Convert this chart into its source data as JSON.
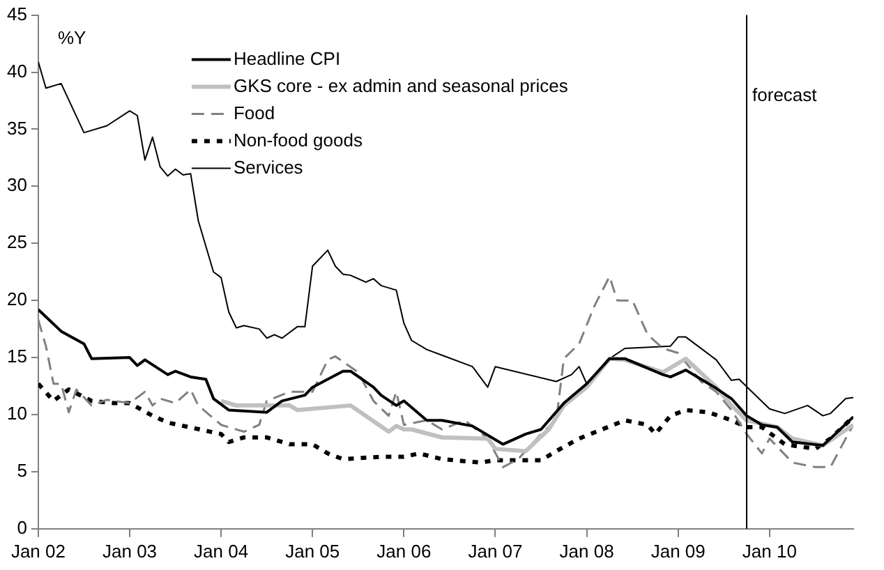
{
  "chart_data": {
    "type": "line",
    "ylabel": "%Y",
    "xlim": [
      "2002-01",
      "2010-12"
    ],
    "xticks": [
      {
        "value": "2002-01",
        "label": "Jan 02"
      },
      {
        "value": "2003-01",
        "label": "Jan 03"
      },
      {
        "value": "2004-01",
        "label": "Jan 04"
      },
      {
        "value": "2005-01",
        "label": "Jan 05"
      },
      {
        "value": "2006-01",
        "label": "Jan 06"
      },
      {
        "value": "2007-01",
        "label": "Jan 07"
      },
      {
        "value": "2008-01",
        "label": "Jan 08"
      },
      {
        "value": "2009-01",
        "label": "Jan 09"
      },
      {
        "value": "2010-01",
        "label": "Jan 10"
      }
    ],
    "ylim": [
      0,
      45
    ],
    "yticks": [
      0,
      5,
      10,
      15,
      20,
      25,
      30,
      35,
      40,
      45
    ],
    "grid": false,
    "legend": "top",
    "marker": "none",
    "ref_lines": [
      {
        "axis": "x",
        "value": "2009-10",
        "label": "forecast",
        "color": "#000000"
      }
    ],
    "series": [
      {
        "name": "Headline CPI",
        "color": "#000000",
        "line_style": "solid",
        "x": [
          "2002-01",
          "2002-04",
          "2002-07",
          "2002-08",
          "2003-01",
          "2003-02",
          "2003-03",
          "2003-06",
          "2003-07",
          "2003-09",
          "2003-11",
          "2003-12",
          "2004-02",
          "2004-07",
          "2004-09",
          "2004-12",
          "2005-01",
          "2005-05",
          "2005-06",
          "2005-09",
          "2005-10",
          "2005-12",
          "2006-01",
          "2006-04",
          "2006-06",
          "2006-10",
          "2007-02",
          "2007-05",
          "2007-07",
          "2007-10",
          "2008-01",
          "2008-04",
          "2008-06",
          "2008-11",
          "2008-12",
          "2009-02",
          "2009-06",
          "2009-08",
          "2009-10",
          "2009-12",
          "2010-02",
          "2010-04",
          "2010-08",
          "2010-09",
          "2010-12"
        ],
        "values": [
          19.2,
          17.3,
          16.2,
          14.9,
          15,
          14.3,
          14.8,
          13.5,
          13.8,
          13.3,
          13.1,
          11.4,
          10.4,
          10.2,
          11.2,
          11.7,
          12.4,
          13.8,
          13.8,
          12.4,
          11.7,
          10.8,
          11.2,
          9.5,
          9.5,
          9.0,
          7.4,
          8.3,
          8.7,
          11,
          12.7,
          14.9,
          14.9,
          13.5,
          13.3,
          13.9,
          12.3,
          11.4,
          9.9,
          9.1,
          8.9,
          7.6,
          7.3,
          7.9,
          9.8
        ]
      },
      {
        "name": "GKS core - ex admin and seasonal prices",
        "color": "#c0c0c0",
        "line_style": "solid",
        "x": [
          "2004-01",
          "2004-03",
          "2004-10",
          "2004-11",
          "2005-06",
          "2005-11",
          "2005-12",
          "2006-01",
          "2006-02",
          "2006-06",
          "2006-12",
          "2007-01",
          "2007-05",
          "2007-08",
          "2007-10",
          "2008-01",
          "2008-04",
          "2008-06",
          "2008-11",
          "2009-02",
          "2009-06",
          "2009-08",
          "2009-10",
          "2010-02",
          "2010-04",
          "2010-08",
          "2010-12"
        ],
        "values": [
          11.2,
          10.8,
          10.8,
          10.4,
          10.8,
          8.5,
          9,
          8.7,
          8.7,
          8.0,
          7.9,
          7.0,
          6.8,
          8.7,
          10.8,
          12.4,
          14.9,
          14.8,
          13.7,
          14.9,
          12.4,
          10.8,
          9.5,
          8.9,
          7.9,
          7.3,
          9.1
        ]
      },
      {
        "name": "Food",
        "color": "#808080",
        "line_style": "dashed",
        "x": [
          "2002-01",
          "2002-02",
          "2002-03",
          "2002-04",
          "2002-05",
          "2002-06",
          "2002-08",
          "2002-10",
          "2003-01",
          "2003-03",
          "2003-04",
          "2003-05",
          "2003-07",
          "2003-09",
          "2003-10",
          "2004-01",
          "2004-04",
          "2004-06",
          "2004-07",
          "2004-10",
          "2005-01",
          "2005-03",
          "2005-04",
          "2005-07",
          "2005-09",
          "2005-11",
          "2005-12",
          "2006-01",
          "2006-04",
          "2006-06",
          "2006-09",
          "2006-12",
          "2007-02",
          "2007-04",
          "2007-07",
          "2007-09",
          "2007-10",
          "2007-12",
          "2008-02",
          "2008-04",
          "2008-05",
          "2008-07",
          "2008-09",
          "2008-11",
          "2009-01",
          "2009-04",
          "2009-06",
          "2009-08",
          "2009-10",
          "2009-12",
          "2010-01",
          "2010-04",
          "2010-07",
          "2010-09",
          "2010-11",
          "2010-12"
        ],
        "values": [
          18.3,
          16,
          12.7,
          12.7,
          10.2,
          12.2,
          10.8,
          11.3,
          11,
          12,
          10.8,
          11.4,
          11,
          12.2,
          10.8,
          9.1,
          8.5,
          9.1,
          11.2,
          12,
          12,
          14.8,
          15.1,
          13.7,
          11.2,
          9.9,
          12,
          9.1,
          9.5,
          8.7,
          9.5,
          7.9,
          5.4,
          6.1,
          8.3,
          9.5,
          14.9,
          16.2,
          19.5,
          22.1,
          20,
          20,
          17,
          15.8,
          15.4,
          12.9,
          12,
          10.4,
          8.3,
          6.6,
          7.9,
          5.8,
          5.4,
          5.4,
          7.9,
          9.1
        ]
      },
      {
        "name": "Non-food goods",
        "color": "#000000",
        "line_style": "dotted",
        "x": [
          "2002-01",
          "2002-03",
          "2002-05",
          "2002-08",
          "2002-11",
          "2003-01",
          "2003-04",
          "2003-06",
          "2004-01",
          "2004-02",
          "2004-04",
          "2004-07",
          "2004-10",
          "2005-01",
          "2005-03",
          "2005-05",
          "2005-10",
          "2006-01",
          "2006-03",
          "2006-06",
          "2006-11",
          "2007-01",
          "2007-07",
          "2007-09",
          "2007-12",
          "2008-03",
          "2008-06",
          "2008-09",
          "2008-10",
          "2008-12",
          "2009-02",
          "2009-05",
          "2009-08",
          "2009-10",
          "2009-12",
          "2010-03",
          "2010-07",
          "2010-09",
          "2010-12"
        ],
        "values": [
          12.7,
          11.2,
          12.2,
          11.2,
          11,
          11,
          9.9,
          9.3,
          8.3,
          7.6,
          8,
          8,
          7.4,
          7.4,
          6.6,
          6.1,
          6.3,
          6.3,
          6.6,
          6.1,
          5.8,
          6,
          6,
          6.8,
          7.9,
          8.7,
          9.5,
          9.1,
          8.3,
          9.9,
          10.4,
          10.2,
          9.5,
          8.9,
          8.9,
          7.4,
          7,
          7.9,
          9.8
        ]
      },
      {
        "name": "Services",
        "color": "#000000",
        "line_style": "solid",
        "x": [
          "2002-01",
          "2002-02",
          "2002-04",
          "2002-07",
          "2002-10",
          "2003-01",
          "2003-02",
          "2003-03",
          "2003-04",
          "2003-05",
          "2003-06",
          "2003-07",
          "2003-08",
          "2003-09",
          "2003-10",
          "2003-12",
          "2004-01",
          "2004-02",
          "2004-03",
          "2004-04",
          "2004-06",
          "2004-07",
          "2004-08",
          "2004-09",
          "2004-11",
          "2004-12",
          "2005-01",
          "2005-03",
          "2005-04",
          "2005-05",
          "2005-06",
          "2005-08",
          "2005-09",
          "2005-10",
          "2005-12",
          "2006-01",
          "2006-02",
          "2006-04",
          "2006-06",
          "2006-10",
          "2006-12",
          "2007-01",
          "2007-09",
          "2007-11",
          "2007-12",
          "2008-01",
          "2008-04",
          "2008-06",
          "2008-12",
          "2009-01",
          "2009-02",
          "2009-06",
          "2009-08",
          "2009-09",
          "2010-01",
          "2010-03",
          "2010-06",
          "2010-08",
          "2010-09",
          "2010-11",
          "2010-12"
        ],
        "values": [
          40.9,
          38.6,
          39,
          34.7,
          35.3,
          36.6,
          36.2,
          32.3,
          34.3,
          31.7,
          30.9,
          31.5,
          31,
          31.1,
          27,
          22.5,
          22,
          19,
          17.6,
          17.8,
          17.5,
          16.7,
          17,
          16.7,
          17.7,
          17.7,
          23,
          24.4,
          23,
          22.3,
          22.2,
          21.6,
          21.9,
          21.3,
          20.9,
          18,
          16.5,
          15.7,
          15.2,
          14.2,
          12.4,
          14.2,
          12.9,
          13.5,
          14.2,
          12.7,
          14.9,
          15.8,
          16,
          16.8,
          16.8,
          14.8,
          13,
          13.1,
          10.5,
          10.1,
          10.8,
          9.9,
          10.1,
          11.4,
          11.5
        ]
      }
    ]
  }
}
